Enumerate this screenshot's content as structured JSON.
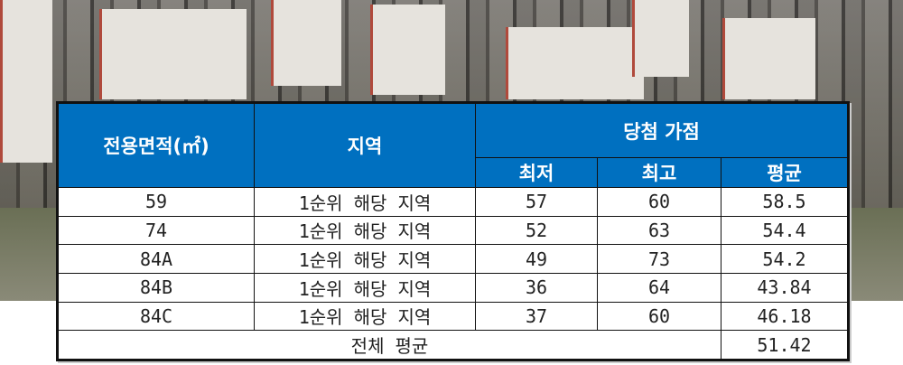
{
  "table": {
    "headers": {
      "area": "전용면적(㎡)",
      "region": "지역",
      "score_group": "당첨 가점",
      "min": "최저",
      "max": "최고",
      "avg": "평균"
    },
    "rows": [
      {
        "area": "59",
        "region": "1순위 해당 지역",
        "min": "57",
        "max": "60",
        "avg": "58.5"
      },
      {
        "area": "74",
        "region": "1순위 해당 지역",
        "min": "52",
        "max": "63",
        "avg": "54.4"
      },
      {
        "area": "84A",
        "region": "1순위 해당 지역",
        "min": "49",
        "max": "73",
        "avg": "54.2"
      },
      {
        "area": "84B",
        "region": "1순위 해당 지역",
        "min": "36",
        "max": "64",
        "avg": "43.84"
      },
      {
        "area": "84C",
        "region": "1순위 해당 지역",
        "min": "37",
        "max": "60",
        "avg": "46.18"
      }
    ],
    "total": {
      "label": "전체 평균",
      "avg": "51.42"
    }
  },
  "colors": {
    "header_bg": "#0070c0",
    "header_text": "#ffffff"
  }
}
